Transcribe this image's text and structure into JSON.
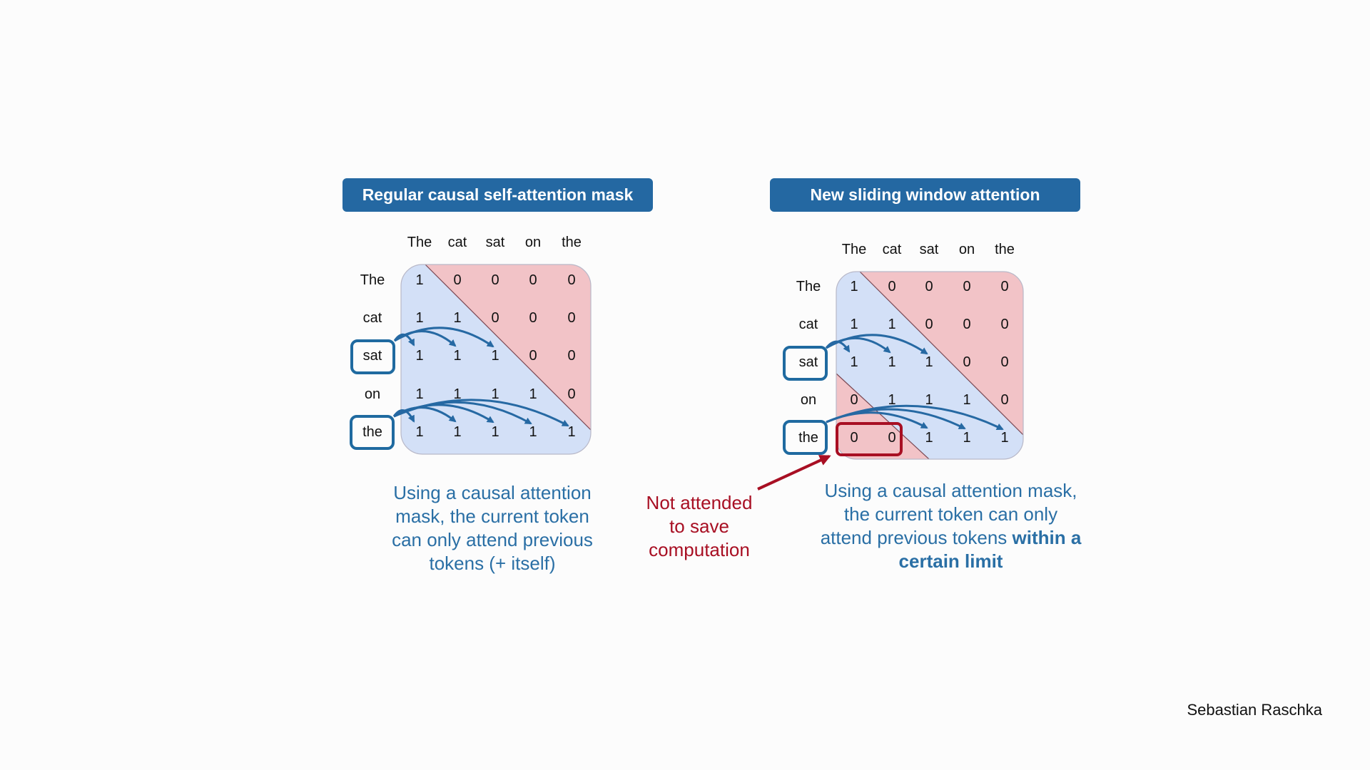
{
  "tokens": [
    "The",
    "cat",
    "sat",
    "on",
    "the"
  ],
  "left_panel": {
    "title": "Regular causal self-attention mask",
    "matrix": [
      [
        1,
        0,
        0,
        0,
        0
      ],
      [
        1,
        1,
        0,
        0,
        0
      ],
      [
        1,
        1,
        1,
        0,
        0
      ],
      [
        1,
        1,
        1,
        1,
        0
      ],
      [
        1,
        1,
        1,
        1,
        1
      ]
    ],
    "highlighted_rows": [
      "sat",
      "the"
    ],
    "caption": [
      "Using a causal attention",
      "mask, the current token",
      "can only attend previous",
      "tokens (+ itself)"
    ]
  },
  "right_panel": {
    "title": "New sliding window attention",
    "matrix": [
      [
        1,
        0,
        0,
        0,
        0
      ],
      [
        1,
        1,
        0,
        0,
        0
      ],
      [
        1,
        1,
        1,
        0,
        0
      ],
      [
        0,
        1,
        1,
        1,
        0
      ],
      [
        0,
        0,
        1,
        1,
        1
      ]
    ],
    "highlighted_rows": [
      "sat",
      "the"
    ],
    "caption_plain": [
      "Using a causal attention mask,",
      "the current token can only",
      "attend previous tokens "
    ],
    "caption_bold": [
      "within a",
      "certain limit"
    ]
  },
  "note": {
    "lines": [
      "Not attended",
      "to save",
      "computation"
    ]
  },
  "credit": "Sebastian Raschka",
  "colors": {
    "title_bg": "#2468a2",
    "attend_fill": "#d3e0f7",
    "masked_fill": "#f2c3c7",
    "arrow": "#2669a3",
    "highlight_border": "#1f6aa0",
    "note_red": "#a80f23",
    "caption_blue": "#2a6fa5"
  }
}
